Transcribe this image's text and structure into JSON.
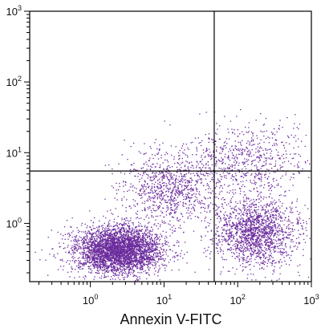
{
  "chart_data": {
    "type": "scatter",
    "title": "",
    "xlabel": "Annexin V-FITC",
    "ylabel": "",
    "xscale": "log",
    "yscale": "log",
    "xlim": [
      0.15,
      1000
    ],
    "ylim": [
      0.15,
      1000
    ],
    "x_ticks": [
      {
        "base": "10",
        "exp": "0",
        "value": 1
      },
      {
        "base": "10",
        "exp": "1",
        "value": 10
      },
      {
        "base": "10",
        "exp": "2",
        "value": 100
      },
      {
        "base": "10",
        "exp": "3",
        "value": 1000
      }
    ],
    "y_ticks": [
      {
        "base": "10",
        "exp": "0",
        "value": 1
      },
      {
        "base": "10",
        "exp": "1",
        "value": 10
      },
      {
        "base": "10",
        "exp": "2",
        "value": 100
      },
      {
        "base": "10",
        "exp": "3",
        "value": 1000
      }
    ],
    "quadrant_gates": {
      "x": 48,
      "y": 5.5
    },
    "point_color": "#6a2a9c",
    "grid": false,
    "legend": "none",
    "populations": [
      {
        "center_x": 2.4,
        "center_y": 0.42,
        "spread_log_x": 0.3,
        "spread_log_y": 0.17,
        "count": 3800
      },
      {
        "center_x": 180,
        "center_y": 0.75,
        "spread_log_x": 0.27,
        "spread_log_y": 0.24,
        "count": 1700
      },
      {
        "center_x": 12,
        "center_y": 3.0,
        "spread_log_x": 0.32,
        "spread_log_y": 0.25,
        "count": 900
      },
      {
        "center_x": 120,
        "center_y": 8.0,
        "spread_log_x": 0.45,
        "spread_log_y": 0.25,
        "count": 700
      }
    ]
  }
}
